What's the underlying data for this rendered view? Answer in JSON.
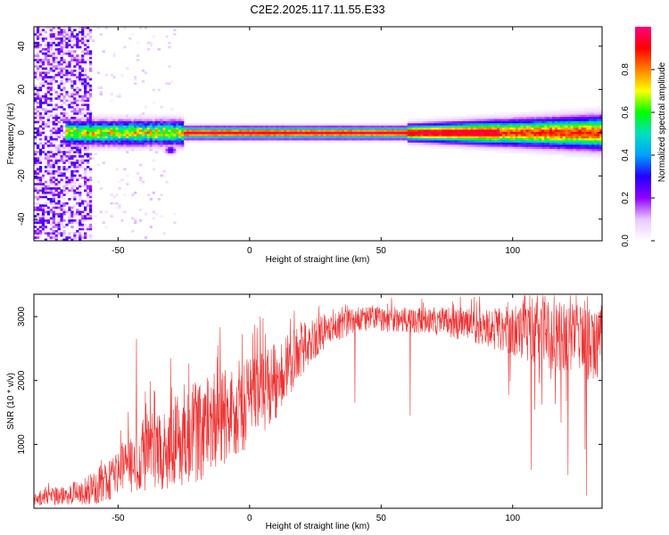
{
  "title": "C2E2.2025.117.11.55.E33",
  "chart_data": [
    {
      "type": "heatmap",
      "xlabel": "Height of straight line (km)",
      "ylabel": "Frequency (Hz)",
      "xlim": [
        -82,
        134
      ],
      "ylim": [
        -50,
        49
      ],
      "xticks": [
        -50,
        0,
        50,
        100
      ],
      "yticks": [
        -40,
        -20,
        0,
        20,
        40
      ],
      "xtick_labels": [
        "-50",
        "0",
        "50",
        "100"
      ],
      "ytick_labels": [
        "-40",
        "-20",
        "0",
        "20",
        "40"
      ],
      "colorbar": {
        "label": "Normalized spectral amplitude",
        "range": [
          0,
          1
        ],
        "ticks": [
          0.0,
          0.2,
          0.4,
          0.6,
          0.8
        ],
        "tick_labels": [
          "0.0",
          "0.2",
          "0.4",
          "0.6",
          "0.8"
        ],
        "colormap": [
          "#ffffff",
          "#e8c8ff",
          "#9000ff",
          "#2000ff",
          "#00a0ff",
          "#00e0c0",
          "#00ff00",
          "#ffff00",
          "#ff8000",
          "#ff0000",
          "#ff0080"
        ]
      },
      "ridge": {
        "frequency": 0,
        "x_range": [
          -70,
          134
        ],
        "peak_amplitude": 1.0
      },
      "secondary_feature": {
        "x": -30,
        "frequency": -8,
        "amplitude": 0.3
      },
      "noise_region": {
        "x_range": [
          -82,
          -60
        ],
        "amplitude_range": [
          0.05,
          0.3
        ]
      }
    },
    {
      "type": "line",
      "xlabel": "Height of straight line (km)",
      "ylabel": "SNR (10 * v/v)",
      "xlim": [
        -82,
        134
      ],
      "ylim": [
        0,
        3350
      ],
      "xticks": [
        -50,
        0,
        50,
        100
      ],
      "yticks": [
        1000,
        2000,
        3000
      ],
      "xtick_labels": [
        "-50",
        "0",
        "50",
        "100"
      ],
      "ytick_labels": [
        "1000",
        "2000",
        "3000"
      ],
      "series": [
        {
          "color": "#ee3333",
          "envelope_x": [
            -82,
            -70,
            -60,
            -50,
            -40,
            -30,
            -20,
            -10,
            0,
            10,
            20,
            30,
            40,
            50,
            60,
            70,
            80,
            90,
            100,
            110,
            120,
            134
          ],
          "envelope_mean": [
            150,
            200,
            300,
            550,
            850,
            1000,
            1200,
            1450,
            1650,
            2000,
            2500,
            2800,
            2950,
            2960,
            2950,
            2920,
            2880,
            2830,
            2780,
            2740,
            2700,
            2650
          ],
          "envelope_spread": [
            120,
            150,
            250,
            400,
            600,
            700,
            800,
            800,
            700,
            600,
            400,
            250,
            200,
            200,
            200,
            200,
            250,
            300,
            400,
            500,
            600,
            700
          ],
          "spikes": [
            {
              "x": -43,
              "y": 2650
            },
            {
              "x": -30,
              "y": 2350
            },
            {
              "x": -12,
              "y": 2550
            },
            {
              "x": 4,
              "y": 3000
            },
            {
              "x": 40,
              "y": 1650
            },
            {
              "x": 61,
              "y": 1450
            },
            {
              "x": 107,
              "y": 600
            },
            {
              "x": 121,
              "y": 520
            },
            {
              "x": 128,
              "y": 200
            }
          ]
        }
      ]
    }
  ]
}
